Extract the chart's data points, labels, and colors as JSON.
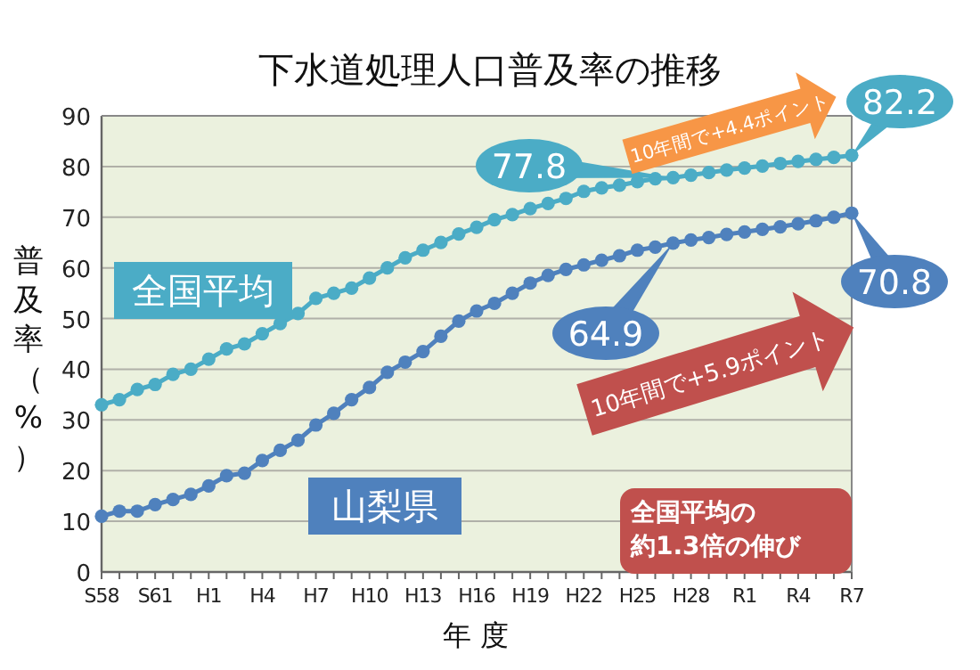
{
  "chart_data": {
    "type": "line",
    "title": "下水道処理人口普及率の推移",
    "xlabel": "年 度",
    "ylabel": "普及率（%）",
    "categories": [
      "S58",
      null,
      null,
      "S61",
      null,
      null,
      "H1",
      null,
      null,
      "H4",
      null,
      null,
      "H7",
      null,
      null,
      "H10",
      null,
      null,
      "H13",
      null,
      null,
      "H16",
      null,
      null,
      "H19",
      null,
      null,
      "H22",
      null,
      null,
      "H25",
      null,
      null,
      "H28",
      null,
      null,
      "R1",
      null,
      null,
      "R4",
      null,
      null,
      "R7"
    ],
    "series": [
      {
        "name": "全国平均",
        "color": "#4bacc6",
        "values": [
          33,
          34,
          36,
          37,
          39,
          40,
          42,
          44,
          45,
          47,
          49,
          51,
          54,
          55,
          56,
          58,
          60,
          62,
          63.5,
          65,
          66.7,
          68,
          69.5,
          70.5,
          71.7,
          72.7,
          73.7,
          75.1,
          75.8,
          76.3,
          77.0,
          77.6,
          77.8,
          78.3,
          78.8,
          79.3,
          79.7,
          80.1,
          80.6,
          81.0,
          81.4,
          81.8,
          82.2
        ]
      },
      {
        "name": "山梨県",
        "color": "#4f81bd",
        "values": [
          11,
          12,
          12,
          13.3,
          14.3,
          15.3,
          17,
          19,
          19.5,
          22,
          24,
          26,
          29,
          31.3,
          34,
          36.4,
          39.4,
          41.4,
          43.5,
          46.5,
          49.5,
          51.5,
          53,
          55,
          57,
          58.5,
          59.7,
          60.6,
          61.5,
          62.4,
          63.5,
          64.1,
          64.9,
          65.5,
          66,
          66.6,
          67.1,
          67.6,
          68.1,
          68.7,
          69.3,
          70,
          70.8
        ]
      }
    ],
    "ylim": [
      0,
      90
    ],
    "yticks": [
      0,
      10,
      20,
      30,
      40,
      50,
      60,
      70,
      80,
      90
    ],
    "grid": "y",
    "marker": "circle",
    "line_style": "solid",
    "annotations": [
      "77.8",
      "82.2",
      "64.9",
      "70.8",
      "10年間で+4.4ポイント",
      "10年間で+5.9ポイント",
      "全国平均の約1.3倍の伸び"
    ]
  }
}
